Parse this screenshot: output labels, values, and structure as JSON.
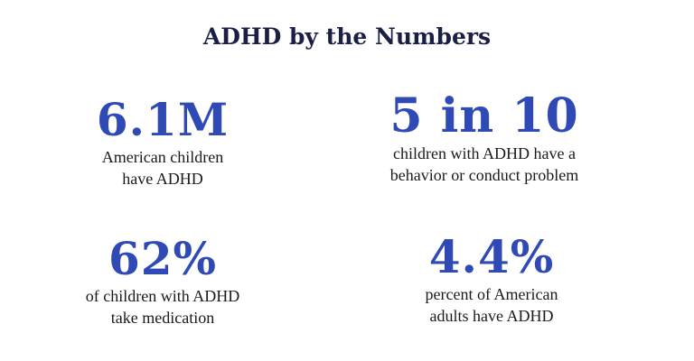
{
  "title": "ADHD by the Numbers",
  "stats": [
    {
      "value": "6.1M",
      "caption": "American children\nhave ADHD"
    },
    {
      "value": "5 in 10",
      "caption": "children with ADHD have a\nbehavior or conduct problem"
    },
    {
      "value": "62%",
      "caption": "of children with ADHD\ntake medication"
    },
    {
      "value": "4.4%",
      "caption": "percent of American\nadults have ADHD"
    }
  ],
  "colors": {
    "title": "#1b1f45",
    "accent": "#2f49b5",
    "text": "#1a1a1a",
    "background": "#ffffff"
  }
}
